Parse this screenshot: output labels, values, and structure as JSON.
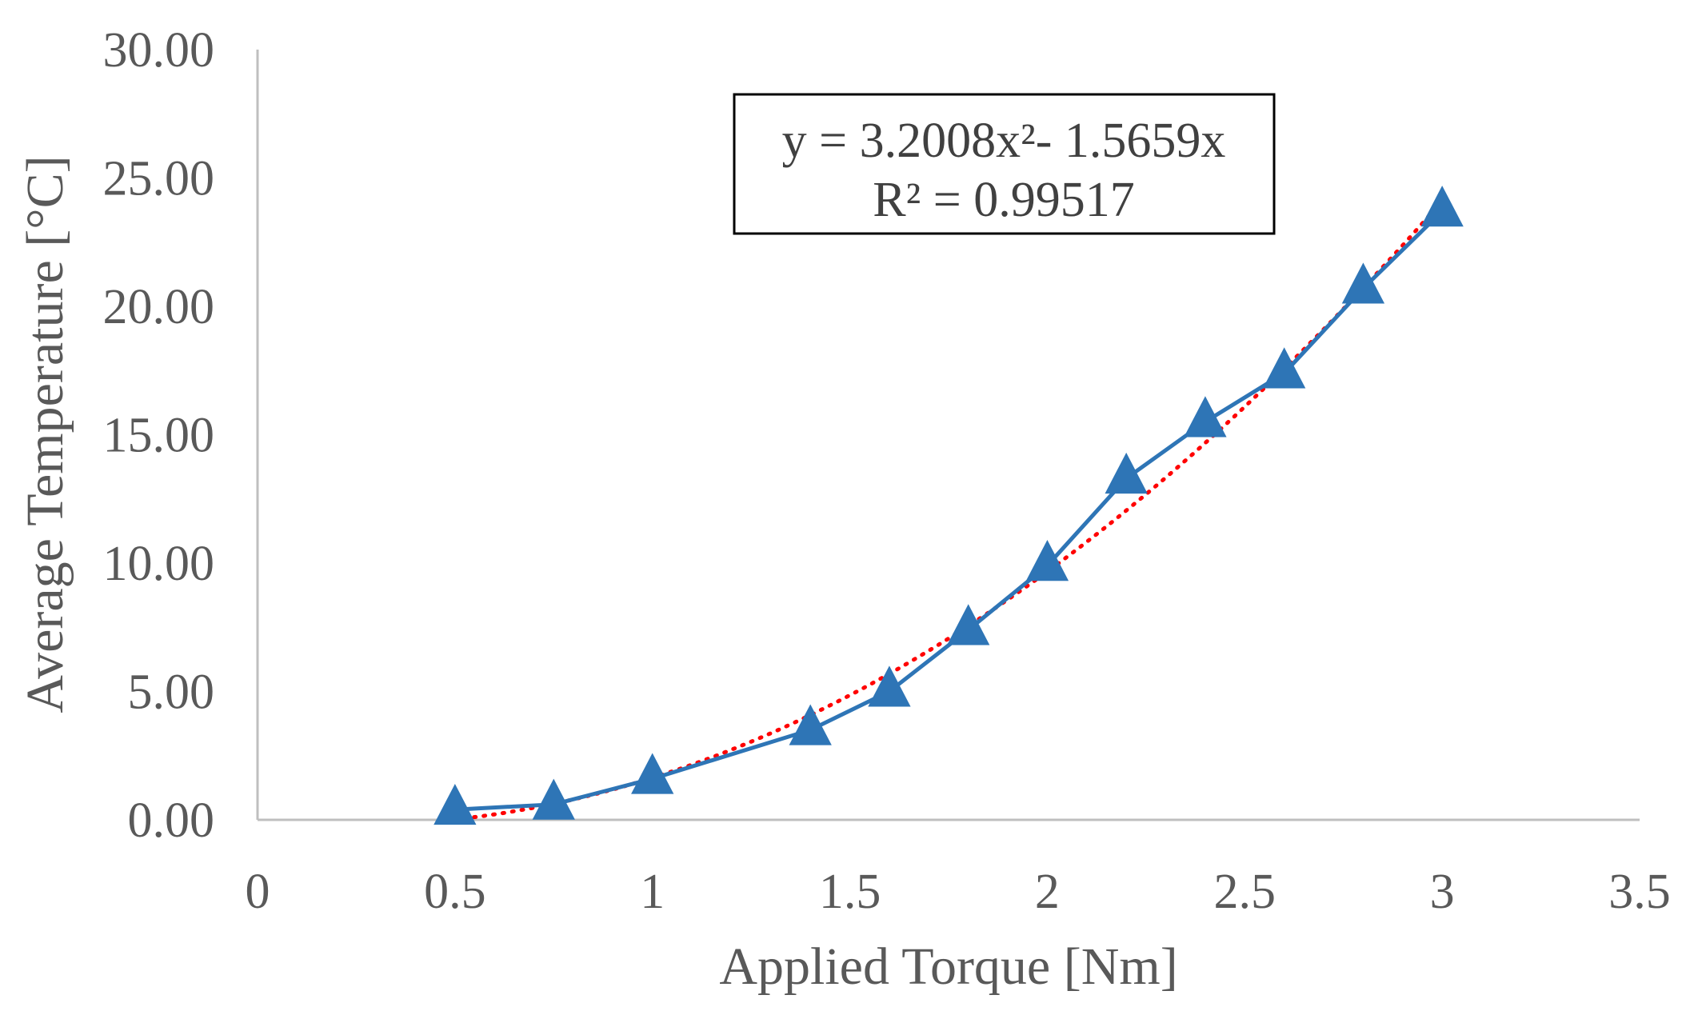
{
  "chart_data": {
    "type": "scatter",
    "xlabel": "Applied Torque [Nm]",
    "ylabel": "Average Temperature [°C]",
    "xlim": [
      0,
      3.5
    ],
    "ylim": [
      0,
      30
    ],
    "x_ticks": [
      "0",
      "0.5",
      "1",
      "1.5",
      "2",
      "2.5",
      "3",
      "3.5"
    ],
    "y_ticks": [
      "0.00",
      "5.00",
      "10.00",
      "15.00",
      "20.00",
      "25.00",
      "30.00"
    ],
    "grid": false,
    "legend": false,
    "series": [
      {
        "color": "#2E75B6",
        "marker": "triangle",
        "line": "solid",
        "x": [
          0.5,
          0.75,
          1.0,
          1.4,
          1.6,
          1.8,
          2.0,
          2.2,
          2.4,
          2.6,
          2.8,
          3.0
        ],
        "y": [
          0.4,
          0.6,
          1.6,
          3.5,
          5.0,
          7.4,
          9.9,
          13.3,
          15.5,
          17.4,
          20.7,
          23.7
        ]
      }
    ],
    "trendline": {
      "type": "polynomial",
      "order": 2,
      "a": 3.2008,
      "b": -1.5659,
      "c": 0,
      "color": "#FF0000",
      "style": "dotted",
      "x_range": [
        0.5,
        3.0
      ]
    },
    "annotation": {
      "line1": "y = 3.2008x²- 1.5659x",
      "line2": "R² = 0.99517"
    }
  },
  "colors": {
    "axis": "#BFBFBF",
    "text": "#595959",
    "series": "#2E75B6",
    "trend": "#FF0000"
  }
}
